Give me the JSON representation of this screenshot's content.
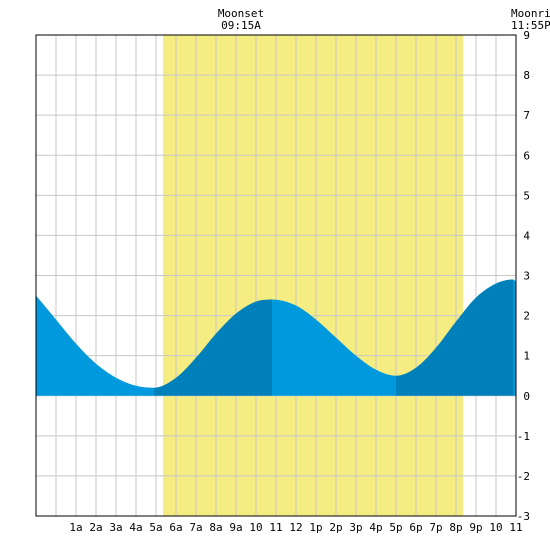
{
  "chart_data": {
    "type": "area",
    "title": "",
    "xlabel": "",
    "ylabel": "",
    "ylim": [
      -3,
      9
    ],
    "xlim": [
      -1,
      23
    ],
    "grid": true,
    "y_ticks": [
      -3,
      -2,
      -1,
      0,
      1,
      2,
      3,
      4,
      5,
      6,
      7,
      8,
      9
    ],
    "x_tick_labels": [
      "1a",
      "2a",
      "3a",
      "4a",
      "5a",
      "6a",
      "7a",
      "8a",
      "9a",
      "10",
      "11",
      "12",
      "1p",
      "2p",
      "3p",
      "4p",
      "5p",
      "6p",
      "7p",
      "8p",
      "9p",
      "10",
      "11"
    ],
    "daylight_hours": [
      5.35,
      20.35
    ],
    "tide_extremes": [
      {
        "hour": 4.9,
        "value": 0.2
      },
      {
        "hour": 10.8,
        "value": 2.4
      },
      {
        "hour": 17.0,
        "value": 0.5
      },
      {
        "hour": 22.85,
        "value": 2.9
      }
    ],
    "tide_series": [
      {
        "hour": -1.0,
        "value": 2.5
      },
      {
        "hour": 0.0,
        "value": 1.9
      },
      {
        "hour": 1.0,
        "value": 1.3
      },
      {
        "hour": 2.0,
        "value": 0.8
      },
      {
        "hour": 3.0,
        "value": 0.45
      },
      {
        "hour": 4.0,
        "value": 0.25
      },
      {
        "hour": 4.9,
        "value": 0.2
      },
      {
        "hour": 6.0,
        "value": 0.45
      },
      {
        "hour": 7.0,
        "value": 0.95
      },
      {
        "hour": 8.0,
        "value": 1.55
      },
      {
        "hour": 9.0,
        "value": 2.05
      },
      {
        "hour": 10.0,
        "value": 2.35
      },
      {
        "hour": 10.8,
        "value": 2.4
      },
      {
        "hour": 12.0,
        "value": 2.25
      },
      {
        "hour": 13.0,
        "value": 1.9
      },
      {
        "hour": 14.0,
        "value": 1.45
      },
      {
        "hour": 15.0,
        "value": 1.0
      },
      {
        "hour": 16.0,
        "value": 0.65
      },
      {
        "hour": 17.0,
        "value": 0.5
      },
      {
        "hour": 18.0,
        "value": 0.7
      },
      {
        "hour": 19.0,
        "value": 1.2
      },
      {
        "hour": 20.0,
        "value": 1.85
      },
      {
        "hour": 21.0,
        "value": 2.45
      },
      {
        "hour": 22.0,
        "value": 2.8
      },
      {
        "hour": 22.85,
        "value": 2.9
      },
      {
        "hour": 23.0,
        "value": 2.85
      }
    ],
    "colors": {
      "daylight": "#f5ed82",
      "tide_light": "#0099dd",
      "tide_dark": "#0080bb",
      "grid": "#c8c8c8",
      "frame": "#000000"
    }
  },
  "moon_events": [
    {
      "label": "Moonset",
      "time": "09:15A",
      "hour": 9.25
    },
    {
      "label": "Moonrise",
      "time": "11:55P",
      "hour": 23.9
    }
  ]
}
